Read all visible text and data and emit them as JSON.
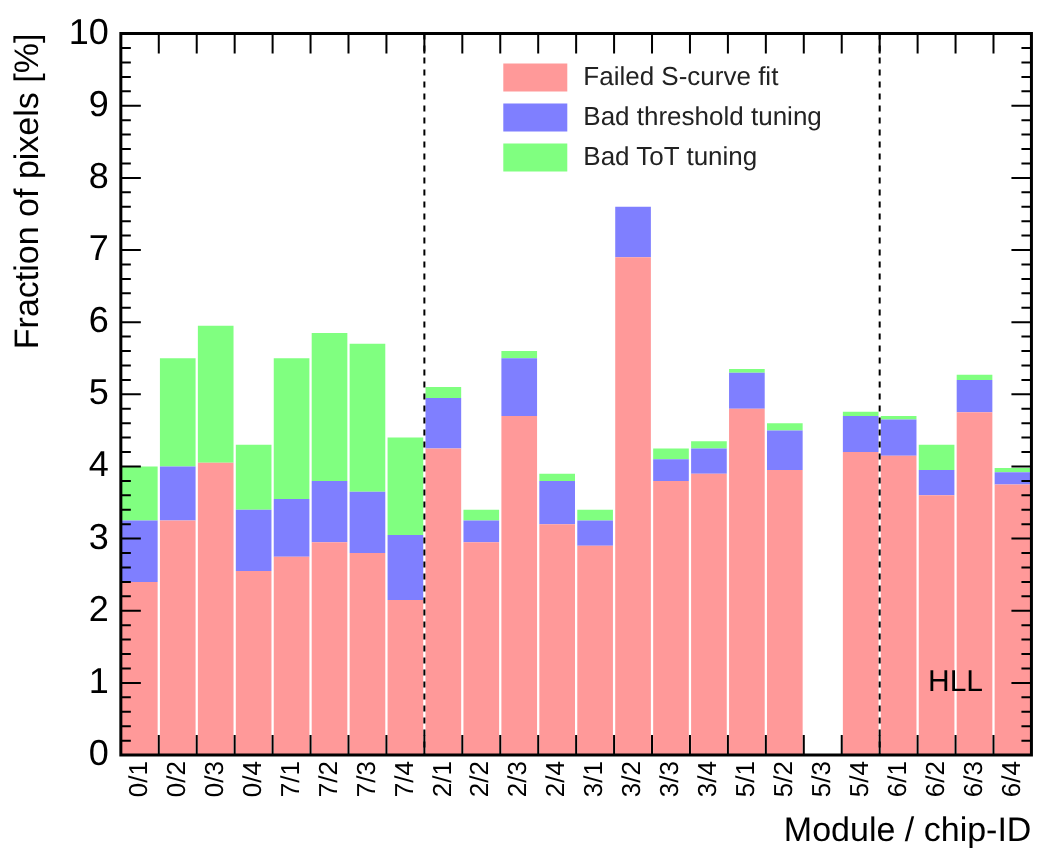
{
  "chart_data": {
    "type": "bar",
    "stacked": true,
    "xlabel": "Module / chip-ID",
    "ylabel": "Fraction of pixels [%]",
    "categories": [
      "0/1",
      "0/2",
      "0/3",
      "0/4",
      "7/1",
      "7/2",
      "7/3",
      "7/4",
      "2/1",
      "2/2",
      "2/3",
      "2/4",
      "3/1",
      "3/2",
      "3/3",
      "3/4",
      "5/1",
      "5/2",
      "5/3",
      "5/4",
      "6/1",
      "6/2",
      "6/3",
      "6/4"
    ],
    "series": [
      {
        "name": "Failed S-curve fit",
        "color": "#ff9999",
        "values": [
          2.4,
          3.25,
          4.05,
          2.55,
          2.75,
          2.95,
          2.8,
          2.15,
          4.25,
          2.95,
          4.7,
          3.2,
          2.9,
          6.9,
          3.8,
          3.9,
          4.8,
          3.95,
          0,
          4.2,
          4.15,
          3.6,
          4.75,
          3.75
        ]
      },
      {
        "name": "Bad threshold tuning",
        "color": "#7f7fff",
        "values": [
          0.85,
          0.75,
          0,
          0.85,
          0.8,
          0.85,
          0.85,
          0.9,
          0.7,
          0.3,
          0.8,
          0.6,
          0.35,
          0.7,
          0.3,
          0.35,
          0.5,
          0.55,
          0,
          0.5,
          0.5,
          0.35,
          0.45,
          0.17
        ]
      },
      {
        "name": "Bad ToT tuning",
        "color": "#80ff80",
        "values": [
          0.75,
          1.5,
          1.9,
          0.9,
          1.95,
          2.05,
          2.05,
          1.35,
          0.15,
          0.15,
          0.1,
          0.1,
          0.15,
          0.0,
          0.15,
          0.1,
          0.05,
          0.1,
          0,
          0.06,
          0.05,
          0.35,
          0.07,
          0.06
        ]
      }
    ],
    "ylim": [
      0,
      10
    ],
    "yticks": [
      0,
      1,
      2,
      3,
      4,
      5,
      6,
      7,
      8,
      9,
      10
    ],
    "grid": false,
    "legend": "top",
    "annotations": [
      "HLL"
    ]
  }
}
